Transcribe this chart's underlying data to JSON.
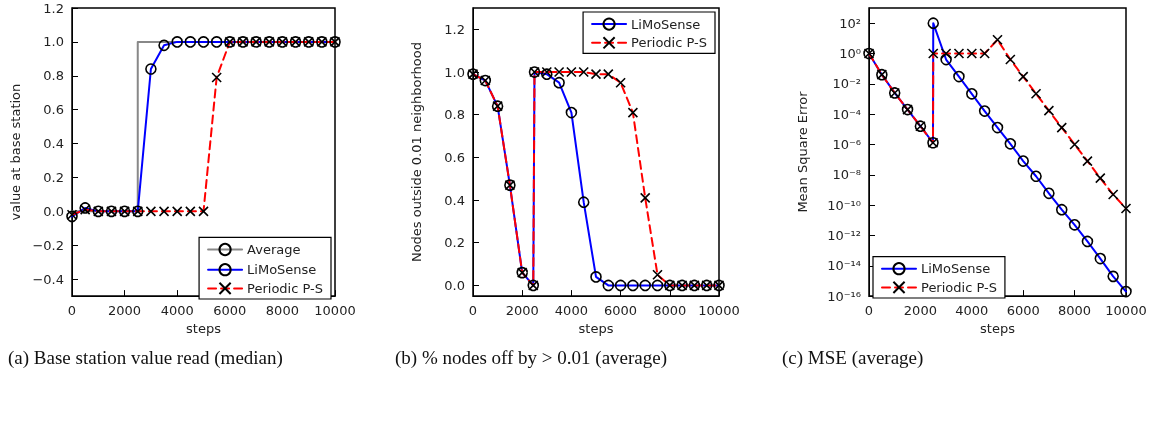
{
  "chart_data": [
    {
      "type": "line",
      "title": "(a) Base station value read (median)",
      "xlabel": "steps",
      "ylabel": "value at base station",
      "x": [
        0,
        500,
        1000,
        1500,
        2000,
        2500,
        3000,
        3500,
        4000,
        4500,
        5000,
        5500,
        6000,
        6500,
        7000,
        7500,
        8000,
        8500,
        9000,
        9500,
        10000
      ],
      "series": [
        {
          "name": "Average",
          "type": "step",
          "color": "#888888",
          "marker": "none",
          "line_style": "solid",
          "x": [
            0,
            2500,
            10000
          ],
          "values": [
            0,
            1,
            1
          ]
        },
        {
          "name": "LiMoSense",
          "color": "#0000ff",
          "marker": "circle",
          "line_style": "solid",
          "values": [
            -0.03,
            0.02,
            0,
            0,
            0,
            0,
            0.84,
            0.98,
            1,
            1,
            1,
            1,
            1,
            1,
            1,
            1,
            1,
            1,
            1,
            1,
            1
          ]
        },
        {
          "name": "Periodic P-S",
          "color": "#ff0000",
          "marker": "cross",
          "line_style": "dashed",
          "values": [
            -0.02,
            0.01,
            0,
            0,
            0,
            0,
            0,
            0,
            0,
            0,
            0,
            0.79,
            1,
            1,
            1,
            1,
            1,
            1,
            1,
            1,
            1
          ]
        }
      ],
      "xlim": [
        0,
        10000
      ],
      "xticks": [
        0,
        2000,
        4000,
        6000,
        8000,
        10000
      ],
      "ylim": [
        -0.5,
        1.2
      ],
      "yticks": [
        {
          "value": -0.4,
          "label": "−0.4"
        },
        {
          "value": -0.2,
          "label": "−0.2"
        },
        {
          "value": 0,
          "label": "0.0"
        },
        0.2,
        0.4,
        0.6,
        0.8,
        {
          "value": 1,
          "label": "1.0"
        },
        1.2
      ],
      "legend": "bottom right",
      "grid": false
    },
    {
      "type": "line",
      "title": "(b) % nodes off by > 0.01 (average)",
      "xlabel": "steps",
      "ylabel": "Nodes outside 0.01 neighborhood",
      "x": [
        0,
        500,
        1000,
        1500,
        2000,
        2450,
        2500,
        3000,
        3500,
        4000,
        4500,
        5000,
        5500,
        6000,
        6500,
        7000,
        7500,
        8000,
        8500,
        9000,
        9500,
        10000
      ],
      "series": [
        {
          "name": "LiMoSense",
          "color": "#0000ff",
          "marker": "circle",
          "line_style": "solid",
          "values": [
            0.99,
            0.96,
            0.84,
            0.47,
            0.06,
            0,
            1,
            0.99,
            0.95,
            0.81,
            0.39,
            0.04,
            0,
            0,
            0,
            0,
            0,
            0,
            0,
            0,
            0,
            0
          ]
        },
        {
          "name": "Periodic P-S",
          "color": "#ff0000",
          "marker": "cross",
          "line_style": "dashed",
          "values": [
            0.99,
            0.96,
            0.84,
            0.47,
            0.06,
            0,
            1,
            1,
            1,
            1,
            1,
            0.99,
            0.99,
            0.95,
            0.81,
            0.41,
            0.05,
            0,
            0,
            0,
            0,
            0
          ]
        }
      ],
      "xlim": [
        0,
        10000
      ],
      "xticks": [
        0,
        2000,
        4000,
        6000,
        8000,
        10000
      ],
      "ylim": [
        -0.05,
        1.3
      ],
      "yticks": [
        {
          "value": 0,
          "label": "0.0"
        },
        0.2,
        0.4,
        0.6,
        0.8,
        {
          "value": 1,
          "label": "1.0"
        },
        1.2
      ],
      "legend": "top right",
      "grid": false
    },
    {
      "type": "line",
      "title": "(c) MSE (average)",
      "xlabel": "steps",
      "ylabel": "Mean Square Error",
      "log": "y",
      "x": [
        0,
        500,
        1000,
        1500,
        2000,
        2490,
        2500,
        3000,
        3500,
        4000,
        4500,
        5000,
        5500,
        6000,
        6500,
        7000,
        7500,
        8000,
        8500,
        9000,
        9500,
        10000
      ],
      "series": [
        {
          "name": "LiMoSense",
          "color": "#0000ff",
          "marker": "circle",
          "line_style": "solid",
          "values": [
            1,
            0.04,
            0.0025,
            0.0002,
            1.6e-05,
            1.3e-06,
            100,
            0.4,
            0.03,
            0.0022,
            0.00016,
            1.3e-05,
            1.1e-06,
            8e-08,
            8e-09,
            6e-10,
            5e-11,
            5e-12,
            4e-13,
            3e-14,
            2e-15,
            2e-16
          ]
        },
        {
          "name": "Periodic P-S",
          "color": "#ff0000",
          "marker": "cross",
          "line_style": "dashed",
          "values": [
            1,
            0.04,
            0.0025,
            0.0002,
            1.6e-05,
            1.3e-06,
            1,
            1,
            1,
            1,
            1,
            8,
            0.4,
            0.03,
            0.0022,
            0.00017,
            1.3e-05,
            1e-06,
            8e-08,
            6e-09,
            5e-10,
            6e-11
          ]
        }
      ],
      "xlim": [
        0,
        10000
      ],
      "xticks": [
        0,
        2000,
        4000,
        6000,
        8000,
        10000
      ],
      "ylim": [
        1e-16,
        1000
      ],
      "yticks": [
        {
          "value": 1e-16,
          "label": "10⁻¹⁶"
        },
        {
          "value": 1e-14,
          "label": "10⁻¹⁴"
        },
        {
          "value": 1e-12,
          "label": "10⁻¹²"
        },
        {
          "value": 1e-10,
          "label": "10⁻¹⁰"
        },
        {
          "value": 1e-08,
          "label": "10⁻⁸"
        },
        {
          "value": 1e-06,
          "label": "10⁻⁶"
        },
        {
          "value": 0.0001,
          "label": "10⁻⁴"
        },
        {
          "value": 0.01,
          "label": "10⁻²"
        },
        {
          "value": 1,
          "label": "10⁰"
        },
        {
          "value": 100,
          "label": "10²"
        }
      ],
      "legend": "bottom left",
      "grid": false
    }
  ]
}
